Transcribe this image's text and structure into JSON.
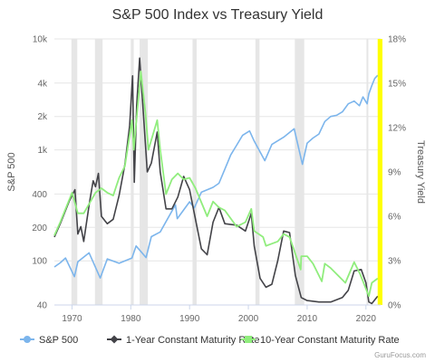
{
  "chart_data": {
    "type": "line",
    "title": "S&P 500 Index vs Treasury Yield",
    "credit": "GuruFocus.com",
    "x_range": [
      1967,
      2022.5
    ],
    "x_ticks": [
      1970,
      1980,
      1990,
      2000,
      2010,
      2020
    ],
    "x_tick_labels": [
      "1970",
      "1980",
      "1990",
      "2000",
      "2010",
      "2020"
    ],
    "y_left": {
      "label": "S&P 500",
      "scale": "log",
      "range": [
        40,
        10000
      ],
      "ticks": [
        40,
        100,
        200,
        400,
        1000,
        2000,
        4000,
        10000
      ],
      "tick_labels": [
        "40",
        "100",
        "200",
        "400",
        "1k",
        "2k",
        "4k",
        "10k"
      ]
    },
    "y_right": {
      "label": "Treasury Yield",
      "unit": "%",
      "range": [
        0,
        18
      ],
      "ticks": [
        0,
        3,
        6,
        9,
        12,
        15,
        18
      ],
      "tick_labels": [
        "0%",
        "3%",
        "6%",
        "9%",
        "12%",
        "15%",
        "18%"
      ]
    },
    "recession_bands": [
      [
        1969.9,
        1970.9
      ],
      [
        1973.9,
        1975.2
      ],
      [
        1980.0,
        1980.5
      ],
      [
        1981.5,
        1982.9
      ],
      [
        1990.5,
        1991.2
      ],
      [
        2001.2,
        2001.9
      ],
      [
        2007.9,
        2009.5
      ],
      [
        2020.1,
        2020.4
      ]
    ],
    "highlight_band": [
      2022.0,
      2022.5
    ],
    "colors": {
      "sp500": "#7cb5ec",
      "one_year": "#434348",
      "ten_year": "#90ed7d",
      "recession": "#e6e6e6",
      "highlight": "#ffff00"
    },
    "series": [
      {
        "name": "S&P 500",
        "axis": "left",
        "x": [
          1967,
          1968,
          1968.9,
          1970.4,
          1971,
          1972.9,
          1974.8,
          1976,
          1978,
          1980.2,
          1980.9,
          1982.6,
          1983.5,
          1985,
          1987.6,
          1987.9,
          1990,
          1990.8,
          1992,
          1994,
          1995,
          1996,
          1997,
          1998,
          1999,
          2000.2,
          2001,
          2002.8,
          2004,
          2006,
          2007.8,
          2009.2,
          2010,
          2011,
          2012,
          2013,
          2014,
          2015,
          2016,
          2017,
          2018,
          2018.9,
          2019.5,
          2020.2,
          2020.5,
          2021,
          2021.5,
          2022
        ],
        "values": [
          88,
          96,
          106,
          72,
          98,
          118,
          70,
          104,
          95,
          106,
          136,
          107,
          165,
          182,
          320,
          240,
          340,
          300,
          415,
          460,
          500,
          670,
          900,
          1100,
          1350,
          1480,
          1200,
          800,
          1120,
          1300,
          1550,
          740,
          1150,
          1280,
          1390,
          1800,
          2000,
          2050,
          2200,
          2600,
          2750,
          2500,
          3000,
          2600,
          3200,
          3800,
          4400,
          4700
        ]
      },
      {
        "name": "1-Year Constant Maturity Rate",
        "axis": "right",
        "x": [
          1967,
          1968,
          1969.5,
          1970.5,
          1971,
          1971.5,
          1972,
          1973,
          1973.6,
          1974,
          1974.5,
          1975,
          1976,
          1977,
          1978,
          1979,
          1979.8,
          1980.3,
          1980.6,
          1981,
          1981.5,
          1982,
          1982.8,
          1983.5,
          1984.5,
          1985,
          1986,
          1987,
          1988,
          1989,
          1990,
          1991,
          1992,
          1993,
          1994,
          1995,
          1996,
          1998,
          1999.5,
          2000.5,
          2001,
          2002,
          2003,
          2004,
          2005,
          2006,
          2007,
          2008,
          2009,
          2010,
          2012,
          2014,
          2016,
          2017,
          2018,
          2019.2,
          2020,
          2020.5,
          2021,
          2022
        ],
        "values": [
          4.6,
          5.5,
          7.0,
          7.8,
          4.8,
          5.3,
          4.3,
          7.0,
          8.4,
          8.0,
          8.9,
          6.0,
          5.5,
          5.8,
          7.4,
          9.5,
          12.1,
          15.5,
          8.3,
          13.5,
          16.7,
          13.8,
          9.0,
          9.6,
          11.7,
          9.0,
          6.5,
          6.5,
          7.3,
          8.7,
          7.8,
          5.8,
          3.8,
          3.4,
          5.6,
          6.6,
          5.5,
          5.4,
          5.0,
          6.2,
          4.0,
          1.8,
          1.2,
          1.4,
          3.0,
          5.0,
          4.9,
          2.0,
          0.5,
          0.3,
          0.2,
          0.2,
          0.5,
          1.0,
          2.3,
          2.4,
          1.5,
          0.2,
          0.1,
          0.6
        ]
      },
      {
        "name": "10-Year Constant Maturity Rate",
        "axis": "right",
        "x": [
          1967,
          1968,
          1969,
          1970,
          1971,
          1972,
          1973,
          1974,
          1975,
          1976,
          1977,
          1978,
          1979,
          1980.2,
          1980.5,
          1981.7,
          1982.5,
          1983,
          1984.5,
          1985,
          1986,
          1987,
          1988,
          1989,
          1990,
          1991,
          1993,
          1994,
          1995,
          1996,
          1998,
          1999.5,
          2000.5,
          2001,
          2002.5,
          2003,
          2005,
          2006,
          2007,
          2008.9,
          2009,
          2010,
          2011,
          2012.5,
          2013,
          2014,
          2016.5,
          2018,
          2019,
          2020.5,
          2021,
          2022
        ],
        "values": [
          4.7,
          5.6,
          6.6,
          7.6,
          6.2,
          6.2,
          6.9,
          7.6,
          7.9,
          7.6,
          7.4,
          8.6,
          9.4,
          12.5,
          10.5,
          15.8,
          13.0,
          10.5,
          12.5,
          10.5,
          7.5,
          8.5,
          8.9,
          8.5,
          8.6,
          7.9,
          6.0,
          7.0,
          6.6,
          6.4,
          5.3,
          5.6,
          6.5,
          5.0,
          4.6,
          4.0,
          4.3,
          4.8,
          4.6,
          2.4,
          3.3,
          3.3,
          2.8,
          1.6,
          2.8,
          2.5,
          1.5,
          2.9,
          2.1,
          0.6,
          1.5,
          1.8
        ]
      }
    ],
    "legend": {
      "placement": "bottom",
      "items": [
        {
          "label": "S&P 500",
          "series": "sp500"
        },
        {
          "label": "1-Year Constant Maturity Rate",
          "series": "one_year"
        },
        {
          "label": "10-Year Constant Maturity Rate",
          "series": "ten_year"
        }
      ]
    }
  }
}
